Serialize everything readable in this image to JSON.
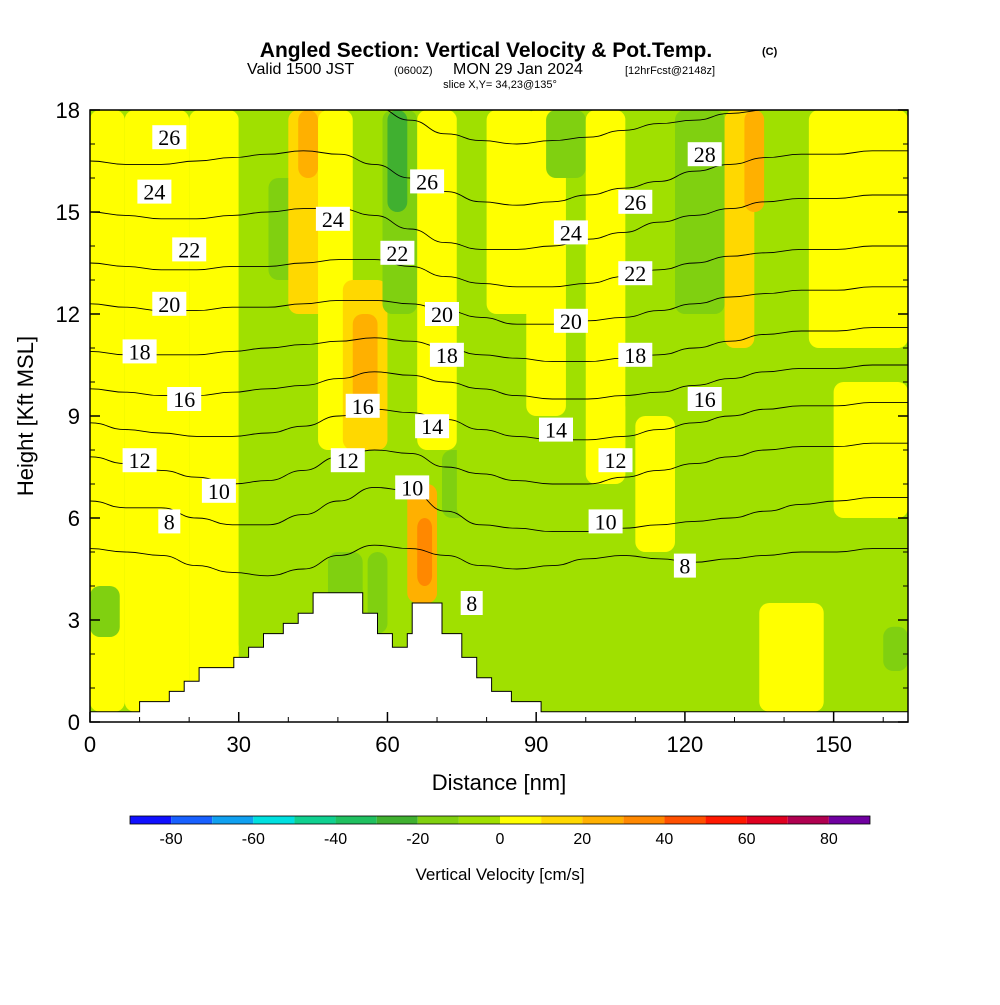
{
  "title": {
    "main": "Angled Section: Vertical Velocity & Pot.Temp.",
    "copyright": "(C)",
    "valid_prefix": "Valid 1500 JST",
    "valid_utc": "(0600Z)",
    "valid_date": "MON 29 Jan 2024",
    "forecast": "[12hrFcst@2148z]",
    "slice": "slice X,Y= 34,23@135°"
  },
  "chart_data": {
    "type": "heatmap",
    "xlabel": "Distance [nm]",
    "ylabel": "Height [Kft MSL]",
    "xlim": [
      0,
      165
    ],
    "ylim": [
      0,
      18
    ],
    "xticks": [
      0,
      30,
      60,
      90,
      120,
      150
    ],
    "yticks": [
      0,
      3,
      6,
      9,
      12,
      15,
      18
    ],
    "terrain_kft": [
      [
        0,
        0.3
      ],
      [
        10,
        0.3
      ],
      [
        10,
        0.6
      ],
      [
        16,
        0.6
      ],
      [
        16,
        0.9
      ],
      [
        19,
        0.9
      ],
      [
        19,
        1.2
      ],
      [
        22,
        1.2
      ],
      [
        22,
        1.6
      ],
      [
        29,
        1.6
      ],
      [
        29,
        1.9
      ],
      [
        32,
        1.9
      ],
      [
        32,
        2.2
      ],
      [
        35,
        2.2
      ],
      [
        35,
        2.6
      ],
      [
        39,
        2.6
      ],
      [
        39,
        2.9
      ],
      [
        42,
        2.9
      ],
      [
        42,
        3.2
      ],
      [
        45,
        3.2
      ],
      [
        45,
        3.8
      ],
      [
        55,
        3.8
      ],
      [
        55,
        3.2
      ],
      [
        58,
        3.2
      ],
      [
        58,
        2.6
      ],
      [
        61,
        2.6
      ],
      [
        61,
        2.2
      ],
      [
        64,
        2.2
      ],
      [
        64,
        2.6
      ],
      [
        65,
        2.6
      ],
      [
        65,
        3.5
      ],
      [
        71,
        3.5
      ],
      [
        71,
        2.6
      ],
      [
        75,
        2.6
      ],
      [
        75,
        1.9
      ],
      [
        78,
        1.9
      ],
      [
        78,
        1.3
      ],
      [
        81,
        1.3
      ],
      [
        81,
        0.9
      ],
      [
        85,
        0.9
      ],
      [
        85,
        0.6
      ],
      [
        91,
        0.6
      ],
      [
        91,
        0.3
      ],
      [
        165,
        0.3
      ]
    ],
    "theta_contours": [
      {
        "label": "8",
        "y": [
          5.1,
          5.0,
          4.9,
          4.6,
          4.4,
          4.3,
          4.5,
          4.9,
          5.2,
          5.1,
          4.9,
          4.6,
          4.5,
          4.6,
          4.8,
          4.9,
          4.8,
          4.7,
          4.8,
          4.9,
          5.0,
          5.0,
          5.1,
          5.1
        ]
      },
      {
        "label": "10",
        "y": [
          6.5,
          6.3,
          6.3,
          6.0,
          5.8,
          5.8,
          6.1,
          6.5,
          6.9,
          6.8,
          6.2,
          5.8,
          5.7,
          5.6,
          5.6,
          5.7,
          5.8,
          5.9,
          6.0,
          6.2,
          6.4,
          6.5,
          6.6,
          6.6
        ]
      },
      {
        "label": "12",
        "y": [
          7.8,
          7.6,
          7.4,
          7.2,
          7.0,
          7.1,
          7.4,
          7.8,
          8.0,
          7.9,
          7.5,
          7.3,
          7.1,
          7.0,
          7.0,
          7.2,
          7.4,
          7.6,
          7.8,
          8.0,
          8.1,
          8.1,
          8.2,
          8.2
        ]
      },
      {
        "label": "14",
        "y": [
          8.8,
          8.6,
          8.5,
          8.4,
          8.4,
          8.5,
          8.7,
          9.0,
          9.2,
          9.1,
          8.9,
          8.6,
          8.4,
          8.3,
          8.3,
          8.4,
          8.6,
          8.8,
          9.0,
          9.2,
          9.3,
          9.3,
          9.4,
          9.4
        ]
      },
      {
        "label": "16",
        "y": [
          9.8,
          9.7,
          9.6,
          9.6,
          9.7,
          9.8,
          9.9,
          10.1,
          10.3,
          10.2,
          10.0,
          9.8,
          9.6,
          9.5,
          9.5,
          9.6,
          9.7,
          9.9,
          10.1,
          10.3,
          10.4,
          10.4,
          10.5,
          10.5
        ]
      },
      {
        "label": "18",
        "y": [
          10.9,
          10.8,
          10.8,
          10.8,
          10.9,
          11.0,
          11.1,
          11.2,
          11.3,
          11.2,
          11.0,
          10.8,
          10.7,
          10.6,
          10.6,
          10.7,
          10.8,
          11.0,
          11.2,
          11.4,
          11.5,
          11.5,
          11.6,
          11.6
        ]
      },
      {
        "label": "20",
        "y": [
          12.3,
          12.2,
          12.1,
          12.1,
          12.2,
          12.2,
          12.3,
          12.4,
          12.4,
          12.3,
          12.1,
          11.9,
          11.7,
          11.7,
          11.8,
          11.9,
          12.1,
          12.3,
          12.5,
          12.6,
          12.7,
          12.7,
          12.8,
          12.8
        ]
      },
      {
        "label": "22",
        "y": [
          13.5,
          13.4,
          13.3,
          13.3,
          13.4,
          13.4,
          13.5,
          13.6,
          13.6,
          13.4,
          13.1,
          12.9,
          12.8,
          12.8,
          12.9,
          13.1,
          13.3,
          13.5,
          13.7,
          13.8,
          13.9,
          13.9,
          14.0,
          14.0
        ]
      },
      {
        "label": "24",
        "y": [
          15.0,
          14.9,
          14.8,
          14.8,
          14.9,
          15.0,
          15.1,
          15.1,
          14.9,
          14.5,
          14.1,
          13.9,
          13.9,
          14.0,
          14.2,
          14.4,
          14.7,
          14.9,
          15.1,
          15.3,
          15.4,
          15.4,
          15.5,
          15.5
        ]
      },
      {
        "label": "26",
        "y": [
          16.5,
          16.4,
          16.4,
          16.5,
          16.6,
          16.7,
          16.8,
          16.7,
          16.4,
          16.0,
          15.6,
          15.3,
          15.2,
          15.3,
          15.5,
          15.7,
          15.9,
          16.2,
          16.4,
          16.6,
          16.7,
          16.7,
          16.8,
          16.8
        ]
      },
      {
        "label": "28",
        "y": [
          18.3,
          18.2,
          18.2,
          18.3,
          18.4,
          18.5,
          18.5,
          18.4,
          18.1,
          17.7,
          17.3,
          17.1,
          17.0,
          17.1,
          17.2,
          17.4,
          17.6,
          17.7,
          17.9,
          18.0,
          18.1,
          18.1,
          18.2,
          18.2
        ]
      }
    ],
    "contour_labels": [
      {
        "text": "26",
        "x": 16,
        "y": 17.2
      },
      {
        "text": "24",
        "x": 13,
        "y": 15.6
      },
      {
        "text": "22",
        "x": 20,
        "y": 13.9
      },
      {
        "text": "20",
        "x": 16,
        "y": 12.3
      },
      {
        "text": "18",
        "x": 10,
        "y": 10.9
      },
      {
        "text": "16",
        "x": 19,
        "y": 9.5
      },
      {
        "text": "12",
        "x": 10,
        "y": 7.7
      },
      {
        "text": "10",
        "x": 26,
        "y": 6.8
      },
      {
        "text": "8",
        "x": 16,
        "y": 5.9
      },
      {
        "text": "24",
        "x": 49,
        "y": 14.8
      },
      {
        "text": "22",
        "x": 62,
        "y": 13.8
      },
      {
        "text": "26",
        "x": 68,
        "y": 15.9
      },
      {
        "text": "20",
        "x": 71,
        "y": 12.0
      },
      {
        "text": "18",
        "x": 72,
        "y": 10.8
      },
      {
        "text": "16",
        "x": 55,
        "y": 9.3
      },
      {
        "text": "14",
        "x": 69,
        "y": 8.7
      },
      {
        "text": "12",
        "x": 52,
        "y": 7.7
      },
      {
        "text": "10",
        "x": 65,
        "y": 6.9
      },
      {
        "text": "8",
        "x": 77,
        "y": 3.5
      },
      {
        "text": "24",
        "x": 97,
        "y": 14.4
      },
      {
        "text": "20",
        "x": 97,
        "y": 11.8
      },
      {
        "text": "14",
        "x": 94,
        "y": 8.6
      },
      {
        "text": "28",
        "x": 124,
        "y": 16.7
      },
      {
        "text": "26",
        "x": 110,
        "y": 15.3
      },
      {
        "text": "22",
        "x": 110,
        "y": 13.2
      },
      {
        "text": "18",
        "x": 110,
        "y": 10.8
      },
      {
        "text": "16",
        "x": 124,
        "y": 9.5
      },
      {
        "text": "12",
        "x": 106,
        "y": 7.7
      },
      {
        "text": "10",
        "x": 104,
        "y": 5.9
      },
      {
        "text": "8",
        "x": 120,
        "y": 4.6
      }
    ],
    "velocity_regions": [
      {
        "x0": 0,
        "x1": 7,
        "y0": 0.3,
        "y1": 18,
        "value": 0
      },
      {
        "x0": 7,
        "x1": 20,
        "y0": 0.3,
        "y1": 18,
        "value": 8
      },
      {
        "x0": 20,
        "x1": 30,
        "y0": 0.3,
        "y1": 18,
        "value": 2
      },
      {
        "x0": 30,
        "x1": 40,
        "y0": 2,
        "y1": 18,
        "value": -8
      },
      {
        "x0": 36,
        "x1": 42,
        "y0": 13,
        "y1": 16,
        "value": -18
      },
      {
        "x0": 40,
        "x1": 48,
        "y0": 12,
        "y1": 18,
        "value": 15
      },
      {
        "x0": 42,
        "x1": 46,
        "y0": 16,
        "y1": 18,
        "value": 25
      },
      {
        "x0": 46,
        "x1": 53,
        "y0": 8,
        "y1": 18,
        "value": 0
      },
      {
        "x0": 51,
        "x1": 60,
        "y0": 8,
        "y1": 13,
        "value": 15
      },
      {
        "x0": 53,
        "x1": 58,
        "y0": 9,
        "y1": 12,
        "value": 22
      },
      {
        "x0": 54,
        "x1": 60,
        "y0": 13,
        "y1": 18,
        "value": -10
      },
      {
        "x0": 59,
        "x1": 66,
        "y0": 12,
        "y1": 18,
        "value": -18
      },
      {
        "x0": 60,
        "x1": 64,
        "y0": 15,
        "y1": 18,
        "value": -25
      },
      {
        "x0": 66,
        "x1": 74,
        "y0": 8,
        "y1": 18,
        "value": 6
      },
      {
        "x0": 48,
        "x1": 55,
        "y0": 3.5,
        "y1": 5,
        "value": -12
      },
      {
        "x0": 56,
        "x1": 60,
        "y0": 2.6,
        "y1": 5,
        "value": -20
      },
      {
        "x0": 64,
        "x1": 70,
        "y0": 3.5,
        "y1": 7,
        "value": 25
      },
      {
        "x0": 66,
        "x1": 69,
        "y0": 4,
        "y1": 6,
        "value": 35
      },
      {
        "x0": 71,
        "x1": 76,
        "y0": 6,
        "y1": 8,
        "value": -15
      },
      {
        "x0": 74,
        "x1": 88,
        "y0": 6,
        "y1": 18,
        "value": -5
      },
      {
        "x0": 80,
        "x1": 90,
        "y0": 12,
        "y1": 18,
        "value": 0
      },
      {
        "x0": 88,
        "x1": 96,
        "y0": 9,
        "y1": 18,
        "value": 8
      },
      {
        "x0": 92,
        "x1": 100,
        "y0": 16,
        "y1": 18,
        "value": -15
      },
      {
        "x0": 100,
        "x1": 108,
        "y0": 7,
        "y1": 18,
        "value": 2
      },
      {
        "x0": 108,
        "x1": 118,
        "y0": 9,
        "y1": 18,
        "value": -8
      },
      {
        "x0": 110,
        "x1": 118,
        "y0": 5,
        "y1": 9,
        "value": 8
      },
      {
        "x0": 118,
        "x1": 128,
        "y0": 12,
        "y1": 18,
        "value": -12
      },
      {
        "x0": 120,
        "x1": 126,
        "y0": 15,
        "y1": 18,
        "value": -20
      },
      {
        "x0": 128,
        "x1": 134,
        "y0": 11,
        "y1": 18,
        "value": 10
      },
      {
        "x0": 132,
        "x1": 136,
        "y0": 15,
        "y1": 18,
        "value": 20
      },
      {
        "x0": 136,
        "x1": 145,
        "y0": 11,
        "y1": 18,
        "value": -5
      },
      {
        "x0": 145,
        "x1": 165,
        "y0": 11,
        "y1": 18,
        "value": 8
      },
      {
        "x0": 150,
        "x1": 165,
        "y0": 6,
        "y1": 10,
        "value": 5
      },
      {
        "x0": 90,
        "x1": 165,
        "y0": 0.3,
        "y1": 5,
        "value": -5
      },
      {
        "x0": 135,
        "x1": 148,
        "y0": 0.3,
        "y1": 3.5,
        "value": 4
      },
      {
        "x0": 0,
        "x1": 6,
        "y0": 2.5,
        "y1": 4,
        "value": -15
      },
      {
        "x0": 160,
        "x1": 165,
        "y0": 1.5,
        "y1": 2.8,
        "value": -15
      }
    ],
    "colorbar": {
      "label": "Vertical Velocity [cm/s]",
      "ticks": [
        -80,
        -60,
        -40,
        -20,
        0,
        20,
        40,
        60,
        80
      ],
      "bins": [
        -90,
        -80,
        -70,
        -60,
        -50,
        -40,
        -30,
        -20,
        -10,
        0,
        10,
        20,
        30,
        40,
        50,
        60,
        70,
        80,
        90
      ],
      "colors": [
        "#1010ff",
        "#1860ff",
        "#10a0f0",
        "#00e0e0",
        "#10d090",
        "#20c060",
        "#40b030",
        "#80d010",
        "#a0e000",
        "#ffff00",
        "#ffd800",
        "#ffb000",
        "#ff8800",
        "#ff5000",
        "#ff1800",
        "#e00020",
        "#b00050",
        "#7000a0"
      ]
    }
  }
}
